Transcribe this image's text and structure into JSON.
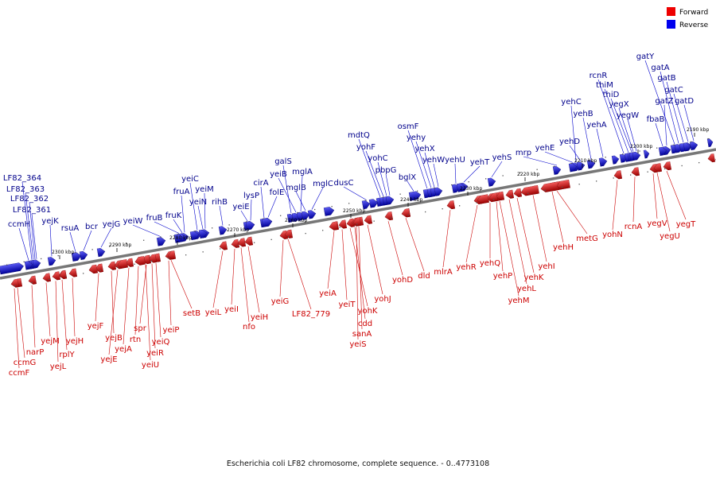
{
  "caption": "Escherichia coli LF82 chromosome, complete sequence. - 0..4773108",
  "legend": [
    {
      "label": "Forward",
      "color": "#ee0000"
    },
    {
      "label": "Reverse",
      "color": "#0000ee"
    }
  ],
  "colors": {
    "forward": "#ee0000",
    "reverse": "#0000ee",
    "forward_text": "#cc0000",
    "reverse_text": "#00008b",
    "backbone": "#777777"
  },
  "kbp_ticks": [
    "2190 kbp",
    "2200 kbp",
    "2210 kbp",
    "2220 kbp",
    "2230 kbp",
    "2240 kbp",
    "2250 kbp",
    "2260 kbp",
    "2270 kbp",
    "2280 kbp",
    "2290 kbp",
    "2300 kbp"
  ],
  "reverse_genes": [
    "gatY",
    "gatA",
    "gatB",
    "gatC",
    "gatZ",
    "gatD",
    "rcnR",
    "thiM",
    "thiD",
    "yegX",
    "yegW",
    "fbaB",
    "yehC",
    "yehB",
    "yehA",
    "yehD",
    "yehE",
    "mrp",
    "yehS",
    "yehT",
    "yehU",
    "osmF",
    "yehy",
    "yehX",
    "yehW",
    "bglX",
    "mdtQ",
    "yohF",
    "yohC",
    "pbpG",
    "dusC",
    "galS",
    "yeiB",
    "mglA",
    "mglB",
    "mglC",
    "cirA",
    "folE",
    "lysP",
    "yeiE",
    "yeiC",
    "fruA",
    "yeiM",
    "yeiN",
    "rihB",
    "fruB",
    "fruK",
    "yeiW",
    "yejG",
    "bcr",
    "rsuA",
    "yejK",
    "LF82_364",
    "LF82_363",
    "LF82_362",
    "LF82_361",
    "ccmH"
  ],
  "forward_genes": [
    "ccmG",
    "ccmF",
    "narP",
    "yejM",
    "rplY",
    "yejL",
    "yejH",
    "yejF",
    "yejB",
    "yejE",
    "yejA",
    "rtn",
    "spr",
    "yeiQ",
    "yeiR",
    "yeiU",
    "yeiP",
    "setB",
    "yeiL",
    "yeiI",
    "nfo",
    "yeiH",
    "yeiG",
    "LF82_779",
    "yeiA",
    "yeiT",
    "yohK",
    "cdd",
    "sanA",
    "yeiS",
    "yohJ",
    "yohD",
    "dld",
    "mlrA",
    "yehR",
    "yehQ",
    "yehP",
    "yehM",
    "yehL",
    "yehK",
    "yehI",
    "yehH",
    "metG",
    "yohN",
    "rcnA",
    "yegV",
    "yegU",
    "yegT"
  ]
}
